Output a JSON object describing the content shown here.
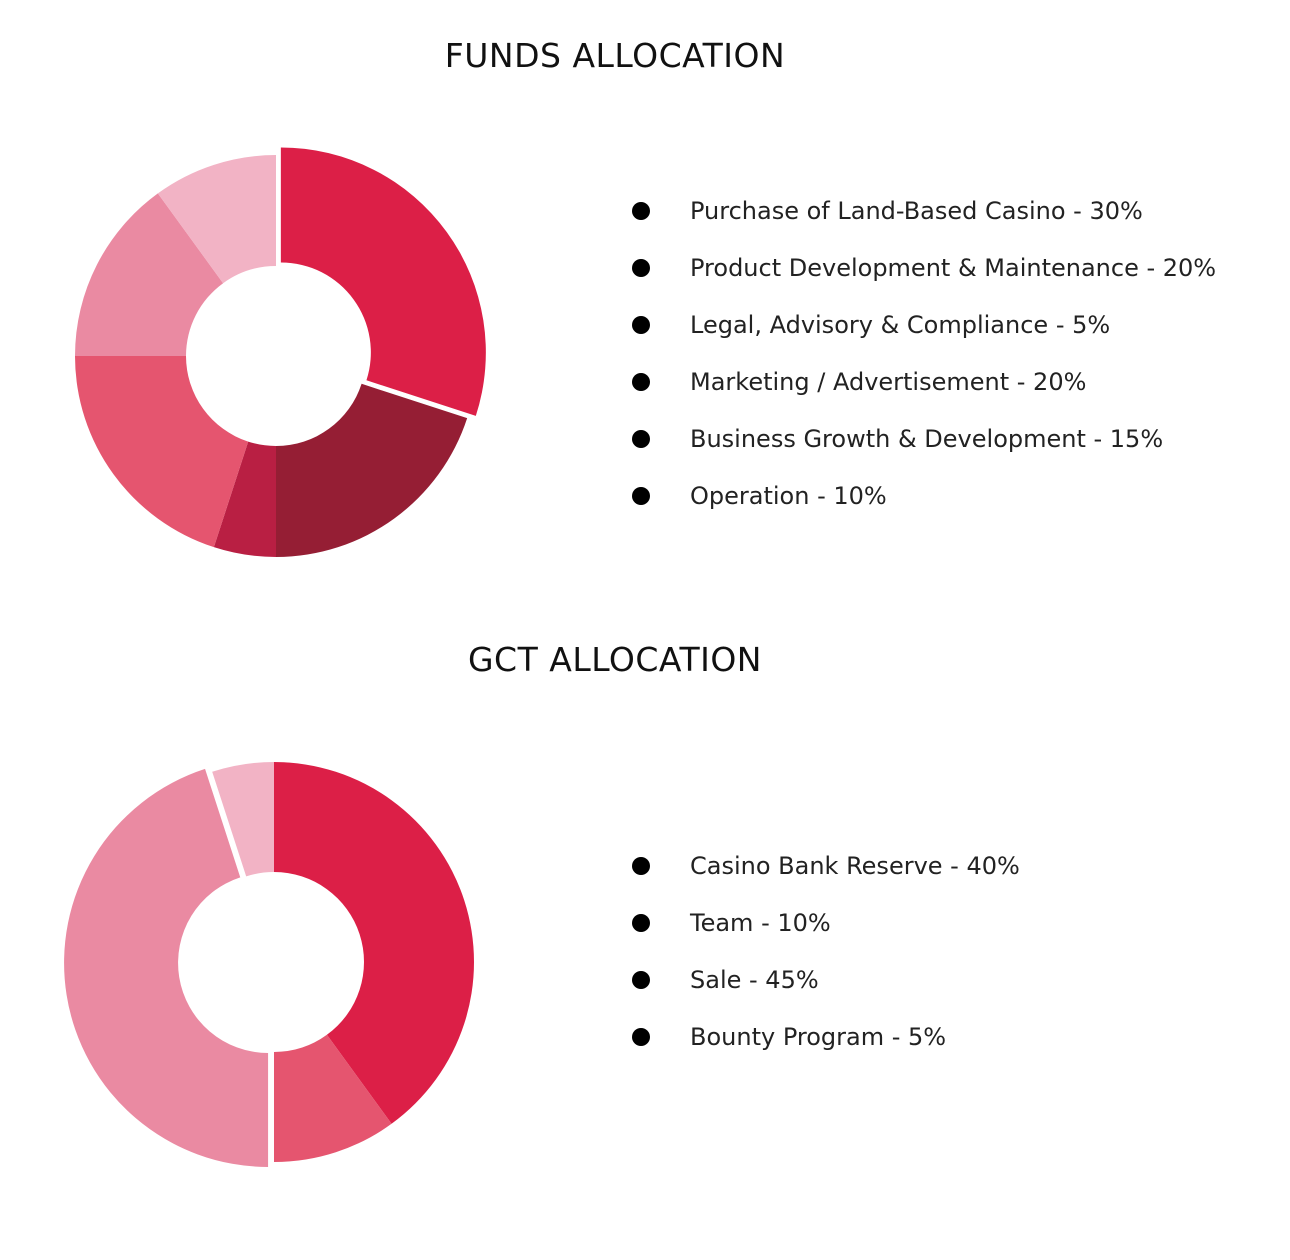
{
  "chart_data": [
    {
      "type": "pie",
      "title": "FUNDS ALLOCATION",
      "donut": true,
      "legend_position": "right",
      "slices": [
        {
          "label": "Purchase of Land-Based Casino - 30%",
          "value": 30,
          "color": "#dc1f47",
          "exploded": true
        },
        {
          "label": "Product Development & Maintenance - 20%",
          "value": 20,
          "color": "#951e34"
        },
        {
          "label": "Legal, Advisory & Compliance - 5%",
          "value": 5,
          "color": "#b91f43"
        },
        {
          "label": "Marketing / Advertisement - 20%",
          "value": 20,
          "color": "#e5556f"
        },
        {
          "label": "Business Growth & Development - 15%",
          "value": 15,
          "color": "#ea8aa2"
        },
        {
          "label": "Operation - 10%",
          "value": 10,
          "color": "#f2b3c5"
        }
      ]
    },
    {
      "type": "pie",
      "title": "GCT ALLOCATION",
      "donut": true,
      "legend_position": "right",
      "slices": [
        {
          "label": "Casino Bank Reserve - 40%",
          "value": 40,
          "color": "#dc1f47"
        },
        {
          "label": "Team - 10%",
          "value": 10,
          "color": "#e5556f"
        },
        {
          "label": "Sale - 45%",
          "value": 45,
          "color": "#ea8aa2",
          "exploded": true
        },
        {
          "label": "Bounty Program - 5%",
          "value": 5,
          "color": "#f2b3c5"
        }
      ]
    }
  ]
}
